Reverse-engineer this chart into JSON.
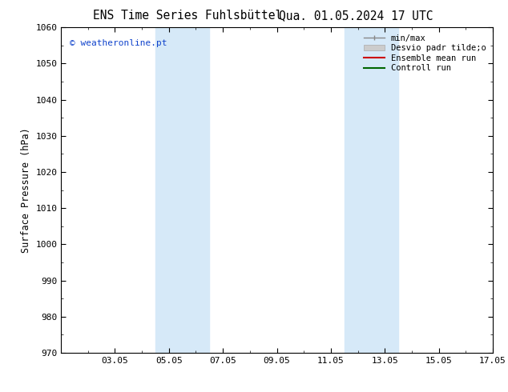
{
  "title_left": "ENS Time Series Fuhlsbüttel",
  "title_right": "Qua. 01.05.2024 17 UTC",
  "ylabel": "Surface Pressure (hPa)",
  "ylim": [
    970,
    1060
  ],
  "yticks": [
    970,
    980,
    990,
    1000,
    1010,
    1020,
    1030,
    1040,
    1050,
    1060
  ],
  "xlim": [
    0,
    16
  ],
  "xtick_labels": [
    "03.05",
    "05.05",
    "07.05",
    "09.05",
    "11.05",
    "13.05",
    "15.05",
    "17.05"
  ],
  "xtick_positions": [
    2,
    4,
    6,
    8,
    10,
    12,
    14,
    16
  ],
  "shaded_bands": [
    {
      "x_start": 3.5,
      "x_end": 5.5
    },
    {
      "x_start": 10.5,
      "x_end": 12.5
    }
  ],
  "band_color": "#d6e9f8",
  "copyright_text": "© weatheronline.pt",
  "copyright_color": "#1144cc",
  "legend_labels": [
    "min/max",
    "Desvio padr tilde;o",
    "Ensemble mean run",
    "Controll run"
  ],
  "bg_color": "#ffffff",
  "grid_color": "#cccccc",
  "title_fontsize": 10.5,
  "tick_fontsize": 8,
  "ylabel_fontsize": 8.5,
  "legend_fontsize": 7.5,
  "copyright_fontsize": 8
}
